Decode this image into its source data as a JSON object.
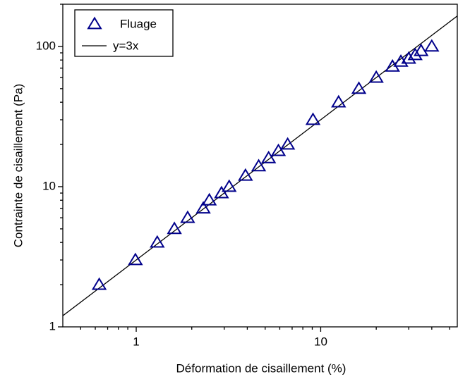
{
  "chart_data": {
    "type": "scatter",
    "x_label": "Déformation de cisaillement (%)",
    "y_label": "Contrainte de cisaillement (Pa)",
    "xscale": "log",
    "yscale": "log",
    "xlim": [
      0.4,
      55
    ],
    "ylim": [
      1,
      200
    ],
    "xticks": [
      1,
      10
    ],
    "yticks": [
      1,
      10,
      100
    ],
    "x_minor_ticks": [
      0.5,
      0.6,
      0.7,
      0.8,
      0.9,
      2,
      3,
      4,
      5,
      6,
      7,
      8,
      9,
      20,
      30,
      40,
      50
    ],
    "y_minor_ticks": [
      2,
      3,
      4,
      5,
      6,
      7,
      8,
      9,
      20,
      30,
      40,
      50,
      60,
      70,
      80,
      90,
      200
    ],
    "legend": "upper left",
    "series": [
      {
        "name": "Fluage",
        "type": "scatter",
        "marker": "triangle-open",
        "color": "#00008b",
        "x": [
          0.63,
          0.99,
          1.3,
          1.61,
          1.9,
          2.31,
          2.49,
          2.9,
          3.19,
          3.91,
          4.61,
          5.22,
          5.9,
          6.62,
          9.08,
          12.5,
          16.1,
          20,
          24.5,
          27.2,
          30,
          32.5,
          35,
          40
        ],
        "values": [
          2,
          3,
          4,
          5,
          6,
          7,
          8,
          9,
          10,
          12,
          14,
          16,
          18,
          20,
          30,
          40,
          50,
          60,
          72,
          78,
          82,
          87,
          93,
          100
        ]
      },
      {
        "name": "y=3x",
        "type": "line",
        "color": "#000000",
        "x": [
          0.4,
          55
        ],
        "values": [
          1.2,
          165
        ]
      }
    ]
  }
}
